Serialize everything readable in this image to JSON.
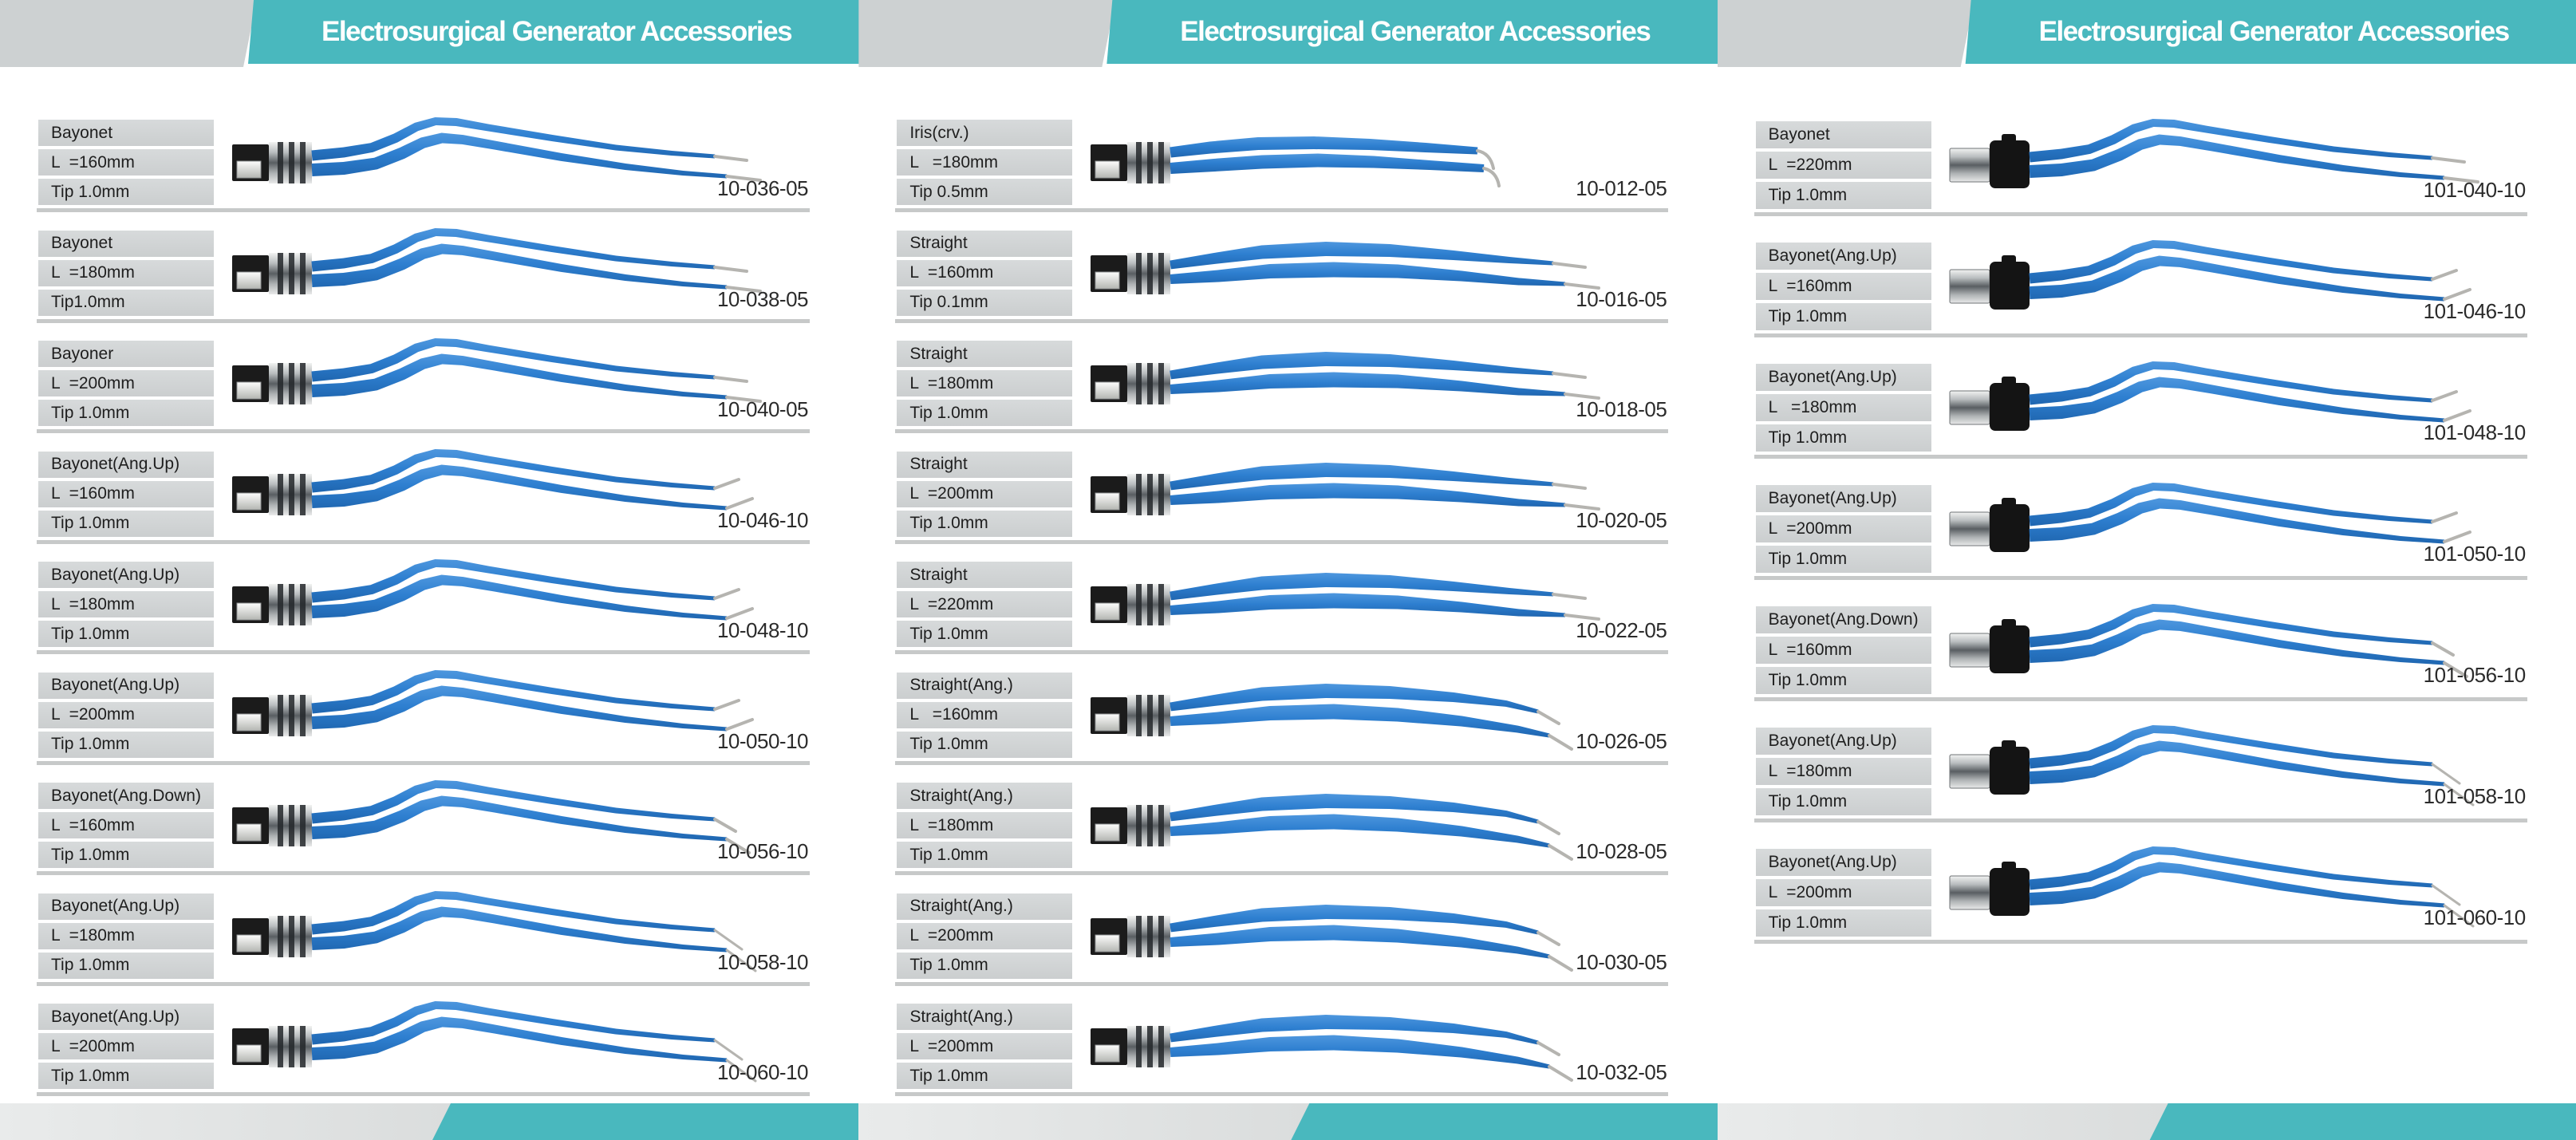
{
  "sheet_title": "Electrosurgical Generator Accessories",
  "theme": {
    "teal": "#49b8be",
    "header_gray": "#cdd1d2",
    "spec_box_gray": "#ced1d2",
    "divider_gray": "#c7c9c9",
    "forceps_blue": "#2e7fd0",
    "code_text": "#2b2b2b"
  },
  "pages": [
    {
      "header": {
        "title": "Electrosurgical Generator Accessories"
      },
      "products": [
        {
          "type": "Bayonet",
          "length": "L  =160mm",
          "tip": "Tip 1.0mm",
          "code": "10-036-05",
          "shape": "bayonet",
          "tip_dir": "straight",
          "connector": "ring"
        },
        {
          "type": "Bayonet",
          "length": "L  =180mm",
          "tip": "Tip1.0mm",
          "code": "10-038-05",
          "shape": "bayonet",
          "tip_dir": "straight",
          "connector": "ring"
        },
        {
          "type": "Bayoner",
          "length": "L  =200mm",
          "tip": "Tip 1.0mm",
          "code": "10-040-05",
          "shape": "bayonet",
          "tip_dir": "straight",
          "connector": "ring"
        },
        {
          "type": "Bayonet(Ang.Up)",
          "length": "L  =160mm",
          "tip": "Tip 1.0mm",
          "code": "10-046-10",
          "shape": "bayonet",
          "tip_dir": "up",
          "connector": "ring"
        },
        {
          "type": "Bayonet(Ang.Up)",
          "length": "L  =180mm",
          "tip": "Tip 1.0mm",
          "code": "10-048-10",
          "shape": "bayonet",
          "tip_dir": "up",
          "connector": "ring"
        },
        {
          "type": "Bayonet(Ang.Up)",
          "length": "L  =200mm",
          "tip": "Tip 1.0mm",
          "code": "10-050-10",
          "shape": "bayonet",
          "tip_dir": "up",
          "connector": "ring"
        },
        {
          "type": "Bayonet(Ang.Down)",
          "length": "L  =160mm",
          "tip": "Tip 1.0mm",
          "code": "10-056-10",
          "shape": "bayonet",
          "tip_dir": "down",
          "connector": "ring"
        },
        {
          "type": "Bayonet(Ang.Up)",
          "length": "L  =180mm",
          "tip": "Tip 1.0mm",
          "code": "10-058-10",
          "shape": "bayonet",
          "tip_dir": "downlong",
          "connector": "ring"
        },
        {
          "type": "Bayonet(Ang.Up)",
          "length": "L  =200mm",
          "tip": "Tip 1.0mm",
          "code": "10-060-10",
          "shape": "bayonet",
          "tip_dir": "downlong",
          "connector": "ring"
        }
      ]
    },
    {
      "header": {
        "title": "Electrosurgical Generator Accessories"
      },
      "products": [
        {
          "type": "Iris(crv.)",
          "length": "L   =180mm",
          "tip": "Tip 0.5mm",
          "code": "10-012-05",
          "shape": "iris",
          "tip_dir": "curve",
          "connector": "ring"
        },
        {
          "type": "Straight",
          "length": "L  =160mm",
          "tip": "Tip 0.1mm",
          "code": "10-016-05",
          "shape": "straight",
          "tip_dir": "straight",
          "connector": "ring"
        },
        {
          "type": "Straight",
          "length": "L  =180mm",
          "tip": "Tip 1.0mm",
          "code": "10-018-05",
          "shape": "straight",
          "tip_dir": "straight",
          "connector": "ring"
        },
        {
          "type": "Straight",
          "length": "L  =200mm",
          "tip": "Tip 1.0mm",
          "code": "10-020-05",
          "shape": "straight",
          "tip_dir": "straight",
          "connector": "ring"
        },
        {
          "type": "Straight",
          "length": "L  =220mm",
          "tip": "Tip 1.0mm",
          "code": "10-022-05",
          "shape": "straight",
          "tip_dir": "straight",
          "connector": "ring"
        },
        {
          "type": "Straight(Ang.)",
          "length": "L   =160mm",
          "tip": "Tip 1.0mm",
          "code": "10-026-05",
          "shape": "straight-ang",
          "tip_dir": "down",
          "connector": "ring"
        },
        {
          "type": "Straight(Ang.)",
          "length": "L  =180mm",
          "tip": "Tip 1.0mm",
          "code": "10-028-05",
          "shape": "straight-ang",
          "tip_dir": "down",
          "connector": "ring"
        },
        {
          "type": "Straight(Ang.)",
          "length": "L  =200mm",
          "tip": "Tip 1.0mm",
          "code": "10-030-05",
          "shape": "straight-ang",
          "tip_dir": "down",
          "connector": "ring"
        },
        {
          "type": "Straight(Ang.)",
          "length": "L  =200mm",
          "tip": "Tip 1.0mm",
          "code": "10-032-05",
          "shape": "straight-ang",
          "tip_dir": "down",
          "connector": "ring"
        }
      ]
    },
    {
      "header": {
        "title": "Electrosurgical Generator Accessories"
      },
      "products": [
        {
          "type": "Bayonet",
          "length": "L  =220mm",
          "tip": "Tip 1.0mm",
          "code": "101-040-10",
          "shape": "bayonet",
          "tip_dir": "straight",
          "connector": "black"
        },
        {
          "type": "Bayonet(Ang.Up)",
          "length": "L  =160mm",
          "tip": "Tip 1.0mm",
          "code": "101-046-10",
          "shape": "bayonet",
          "tip_dir": "up",
          "connector": "black"
        },
        {
          "type": "Bayonet(Ang.Up)",
          "length": "L   =180mm",
          "tip": "Tip 1.0mm",
          "code": "101-048-10",
          "shape": "bayonet",
          "tip_dir": "up",
          "connector": "black"
        },
        {
          "type": "Bayonet(Ang.Up)",
          "length": "L  =200mm",
          "tip": "Tip 1.0mm",
          "code": "101-050-10",
          "shape": "bayonet",
          "tip_dir": "up",
          "connector": "black"
        },
        {
          "type": "Bayonet(Ang.Down)",
          "length": "L  =160mm",
          "tip": "Tip 1.0mm",
          "code": "101-056-10",
          "shape": "bayonet",
          "tip_dir": "down",
          "connector": "black"
        },
        {
          "type": "Bayonet(Ang.Up)",
          "length": "L  =180mm",
          "tip": "Tip 1.0mm",
          "code": "101-058-10",
          "shape": "bayonet",
          "tip_dir": "downlong",
          "connector": "black"
        },
        {
          "type": "Bayonet(Ang.Up)",
          "length": "L  =200mm",
          "tip": "Tip 1.0mm",
          "code": "101-060-10",
          "shape": "bayonet",
          "tip_dir": "downlong",
          "connector": "black"
        }
      ]
    }
  ]
}
